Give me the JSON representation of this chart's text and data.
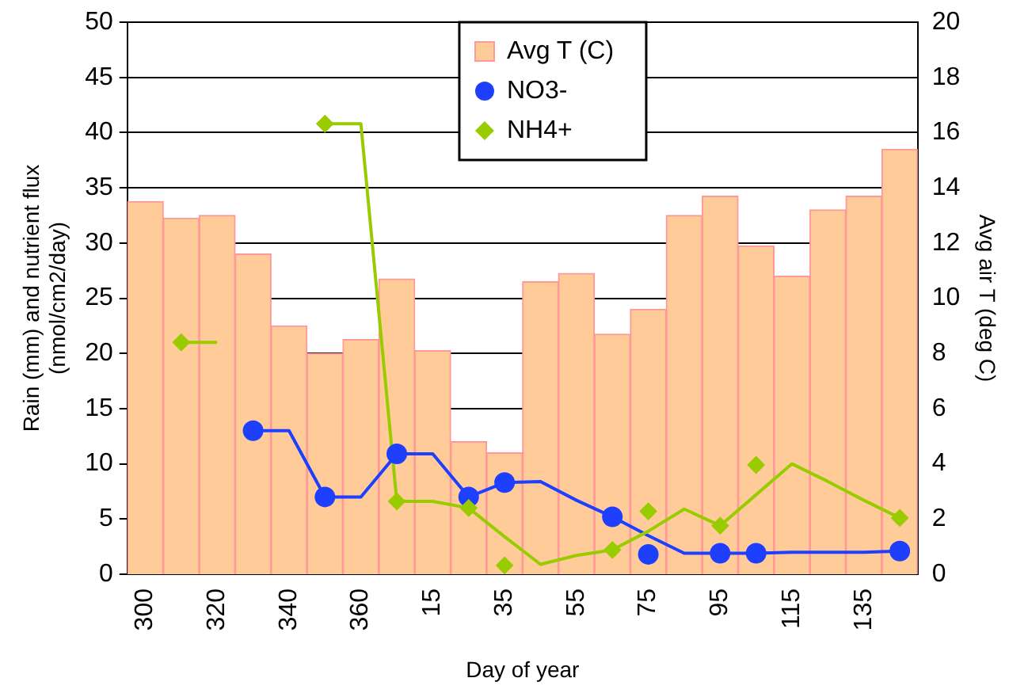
{
  "chart_data": {
    "type": "bar",
    "xlabel": "Day of year",
    "ylabel": "Rain (mm) and nutrient flux\n(nmol/cm2/day)",
    "y2label": "Avg air T (deg C)",
    "categories": [
      "300",
      null,
      "320",
      null,
      "340",
      null,
      "360",
      null,
      "15",
      null,
      "35",
      null,
      "55",
      null,
      "75",
      null,
      "95",
      null,
      "115",
      null,
      "135",
      null
    ],
    "series": [
      {
        "name": "Avg T (C)",
        "axis": "y2",
        "color": "#ffcc99",
        "values": [
          13.5,
          12.9,
          13.0,
          11.6,
          9.0,
          8.0,
          8.5,
          10.7,
          8.1,
          4.8,
          4.4,
          10.6,
          10.9,
          8.7,
          9.6,
          13.0,
          13.7,
          11.9,
          10.8,
          13.2,
          13.7,
          15.4
        ]
      },
      {
        "type": "line",
        "color": "#1f3fff",
        "marker": "none",
        "values": [
          null,
          null,
          null,
          13,
          13,
          7,
          7,
          10.9,
          10.9,
          7,
          8.3,
          8.4,
          6.7,
          5.2,
          3.5,
          1.9,
          1.9,
          1.9,
          2.0,
          2.0,
          2.0,
          2.1
        ]
      },
      {
        "type": "line",
        "color": "#99cc00",
        "marker": "none",
        "values": [
          null,
          21,
          21,
          null,
          null,
          40.8,
          40.8,
          6.6,
          6.6,
          6.0,
          3.4,
          0.9,
          1.7,
          2.2,
          3.9,
          5.9,
          4.4,
          7.2,
          10.0,
          8.4,
          6.7,
          5.1
        ]
      },
      {
        "name": "NO3-",
        "type": "scatter",
        "color": "#1f3fff",
        "marker": "circle",
        "values": [
          null,
          null,
          null,
          13,
          null,
          7,
          null,
          10.9,
          null,
          7,
          8.3,
          null,
          null,
          5.2,
          1.8,
          null,
          1.9,
          1.9,
          null,
          null,
          null,
          2.1
        ]
      },
      {
        "name": "NH4+",
        "type": "scatter",
        "color": "#99cc00",
        "marker": "diamond",
        "values": [
          null,
          21,
          null,
          null,
          null,
          40.8,
          null,
          6.6,
          null,
          6.0,
          0.8,
          null,
          null,
          2.2,
          5.7,
          null,
          4.4,
          9.9,
          null,
          null,
          null,
          5.1
        ]
      }
    ],
    "ylim": [
      0,
      50
    ],
    "yticks": [
      0,
      5,
      10,
      15,
      20,
      25,
      30,
      35,
      40,
      45,
      50
    ],
    "y2lim": [
      0,
      20
    ],
    "y2ticks": [
      0,
      2,
      4,
      6,
      8,
      10,
      12,
      14,
      16,
      18,
      20
    ],
    "grid": "y",
    "legend": "top right"
  }
}
